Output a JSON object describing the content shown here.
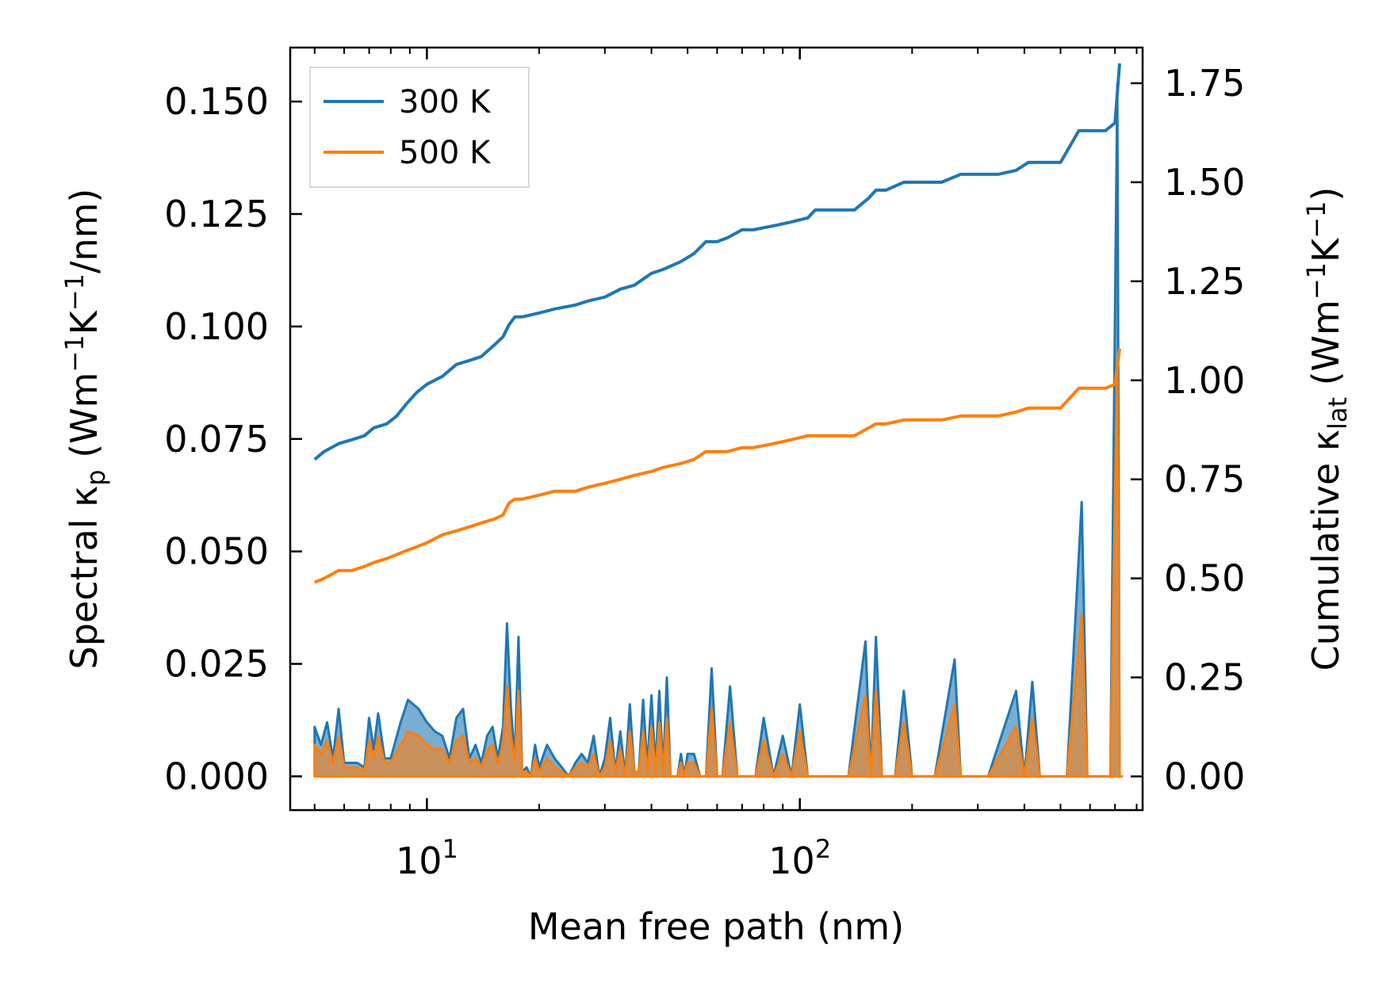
{
  "chart_data": {
    "type": "line",
    "xlabel": "Mean free path (nm)",
    "x_scale": "log",
    "xlim": [
      4.3,
      830
    ],
    "x_major_ticks": [
      {
        "value": 10,
        "base": "10",
        "exp": "1"
      },
      {
        "value": 100,
        "base": "10",
        "exp": "2"
      }
    ],
    "ylabel_left": {
      "main": "Spectral κ",
      "sub": "p",
      "unit_open": " (Wm",
      "sup1": "−1",
      "mid": "K",
      "sup2": "−1",
      "unit_close": "/nm)"
    },
    "ylabel_right": {
      "main": "Cumulative κ",
      "sub": "lat",
      "unit_open": " (Wm",
      "sup1": "−1",
      "mid": "K",
      "sup2": "−1",
      "unit_close": ")"
    },
    "ylim_left": [
      -0.0075,
      0.162
    ],
    "ylim_right": [
      -0.085,
      1.84
    ],
    "yticks_left": [
      {
        "value": 0.0,
        "label": "0.000"
      },
      {
        "value": 0.025,
        "label": "0.025"
      },
      {
        "value": 0.05,
        "label": "0.050"
      },
      {
        "value": 0.075,
        "label": "0.075"
      },
      {
        "value": 0.1,
        "label": "0.100"
      },
      {
        "value": 0.125,
        "label": "0.125"
      },
      {
        "value": 0.15,
        "label": "0.150"
      }
    ],
    "yticks_right": [
      {
        "value": 0.0,
        "label": "0.00"
      },
      {
        "value": 0.25,
        "label": "0.25"
      },
      {
        "value": 0.5,
        "label": "0.50"
      },
      {
        "value": 0.75,
        "label": "0.75"
      },
      {
        "value": 1.0,
        "label": "1.00"
      },
      {
        "value": 1.25,
        "label": "1.25"
      },
      {
        "value": 1.5,
        "label": "1.50"
      },
      {
        "value": 1.75,
        "label": "1.75"
      }
    ],
    "legend_position": "top-left",
    "series": [
      {
        "name": "300 K",
        "color": "#1f77b4",
        "cumulative": {
          "x": [
            5.0,
            5.3,
            5.8,
            6.3,
            6.8,
            7.2,
            7.8,
            8.3,
            8.8,
            9.4,
            10.0,
            11.0,
            12.0,
            13.0,
            14.0,
            15.2,
            16.0,
            16.6,
            17.2,
            18.0,
            20.0,
            22.0,
            25.0,
            27.0,
            30.0,
            33.0,
            36.0,
            40.0,
            43.0,
            48.0,
            52.0,
            56.0,
            60.0,
            64.0,
            70.0,
            75.0,
            85.0,
            95.0,
            105.0,
            110.0,
            125.0,
            140.0,
            153.0,
            160.0,
            170.0,
            190.0,
            210.0,
            240.0,
            270.0,
            300.0,
            340.0,
            380.0,
            410.0,
            440.0,
            500.0,
            560.0,
            600.0,
            660.0,
            700.0,
            720.0
          ],
          "y": [
            0.8,
            0.82,
            0.84,
            0.85,
            0.86,
            0.88,
            0.89,
            0.91,
            0.94,
            0.97,
            0.99,
            1.01,
            1.04,
            1.05,
            1.06,
            1.09,
            1.11,
            1.14,
            1.16,
            1.16,
            1.17,
            1.18,
            1.19,
            1.2,
            1.21,
            1.23,
            1.24,
            1.27,
            1.28,
            1.3,
            1.32,
            1.35,
            1.35,
            1.36,
            1.38,
            1.38,
            1.39,
            1.4,
            1.41,
            1.43,
            1.43,
            1.43,
            1.46,
            1.48,
            1.48,
            1.5,
            1.5,
            1.5,
            1.52,
            1.52,
            1.52,
            1.53,
            1.55,
            1.55,
            1.55,
            1.63,
            1.63,
            1.63,
            1.65,
            1.8
          ]
        }
      },
      {
        "name": "500 K",
        "color": "#ff7f0e",
        "cumulative": {
          "x": [
            5.0,
            5.3,
            5.8,
            6.3,
            6.8,
            7.2,
            7.8,
            8.3,
            8.8,
            9.4,
            10.0,
            11.0,
            12.0,
            13.0,
            14.0,
            15.2,
            16.0,
            16.6,
            17.2,
            18.0,
            20.0,
            22.0,
            25.0,
            27.0,
            30.0,
            33.0,
            36.0,
            40.0,
            43.0,
            48.0,
            52.0,
            56.0,
            60.0,
            64.0,
            70.0,
            75.0,
            85.0,
            95.0,
            105.0,
            110.0,
            125.0,
            140.0,
            153.0,
            160.0,
            170.0,
            190.0,
            210.0,
            240.0,
            270.0,
            300.0,
            340.0,
            380.0,
            410.0,
            440.0,
            500.0,
            560.0,
            600.0,
            660.0,
            700.0,
            720.0
          ],
          "y": [
            0.49,
            0.5,
            0.52,
            0.52,
            0.53,
            0.54,
            0.55,
            0.56,
            0.57,
            0.58,
            0.59,
            0.61,
            0.62,
            0.63,
            0.64,
            0.65,
            0.66,
            0.69,
            0.7,
            0.7,
            0.71,
            0.72,
            0.72,
            0.73,
            0.74,
            0.75,
            0.76,
            0.77,
            0.78,
            0.79,
            0.8,
            0.82,
            0.82,
            0.82,
            0.83,
            0.83,
            0.84,
            0.85,
            0.86,
            0.86,
            0.86,
            0.86,
            0.88,
            0.89,
            0.89,
            0.9,
            0.9,
            0.9,
            0.91,
            0.91,
            0.91,
            0.92,
            0.93,
            0.93,
            0.93,
            0.98,
            0.98,
            0.98,
            0.99,
            1.08
          ]
        }
      }
    ],
    "spectral": {
      "x": [
        5.0,
        5.2,
        5.4,
        5.6,
        5.8,
        6.0,
        6.2,
        6.5,
        6.8,
        7.0,
        7.2,
        7.4,
        7.7,
        8.0,
        8.5,
        8.9,
        9.5,
        10.0,
        10.5,
        11.0,
        11.5,
        12.0,
        12.5,
        13.0,
        13.5,
        14.0,
        14.5,
        15.0,
        15.5,
        16.0,
        16.4,
        16.8,
        17.2,
        17.6,
        18.0,
        18.5,
        19.0,
        19.5,
        20.0,
        21.0,
        22.0,
        23.0,
        24.0,
        25.0,
        26.0,
        27.0,
        28.0,
        29.0,
        30.0,
        31.0,
        32.0,
        33.0,
        34.0,
        35.0,
        36.0,
        37.0,
        38.0,
        39.0,
        40.0,
        41.0,
        42.0,
        43.0,
        44.0,
        45.0,
        46.0,
        47.0,
        48.0,
        49.0,
        50.0,
        52.0,
        54.0,
        56.0,
        58.0,
        60.0,
        62.0,
        65.0,
        68.0,
        72.0,
        76.0,
        80.0,
        85.0,
        90.0,
        95.0,
        100.0,
        105.0,
        112.0,
        120.0,
        135.0,
        150.0,
        155.0,
        160.0,
        166.0,
        172.0,
        180.0,
        190.0,
        200.0,
        230.0,
        260.0,
        270.0,
        280.0,
        320.0,
        380.0,
        400.0,
        420.0,
        440.0,
        460.0,
        520.0,
        570.0,
        590.0,
        610.0,
        680.0,
        710.0,
        720.0,
        730.0
      ],
      "y300": [
        0.011,
        0.007,
        0.012,
        0.004,
        0.015,
        0.003,
        0.003,
        0.003,
        0.002,
        0.013,
        0.006,
        0.014,
        0.004,
        0.004,
        0.012,
        0.017,
        0.015,
        0.012,
        0.01,
        0.009,
        0.004,
        0.013,
        0.015,
        0.004,
        0.007,
        0.003,
        0.009,
        0.011,
        0.004,
        0.011,
        0.034,
        0.015,
        0.004,
        0.031,
        0.001,
        0.002,
        0.0,
        0.007,
        0.002,
        0.007,
        0.004,
        0.002,
        0.0,
        0.003,
        0.005,
        0.003,
        0.009,
        0.0,
        0.004,
        0.013,
        0.001,
        0.01,
        0.0,
        0.016,
        0.001,
        0.001,
        0.017,
        0.002,
        0.018,
        0.002,
        0.019,
        0.001,
        0.022,
        0.0,
        0.0,
        0.0,
        0.005,
        0.0,
        0.005,
        0.005,
        0.0,
        0.0,
        0.024,
        0.0,
        0.0,
        0.02,
        0.0,
        0.0,
        0.0,
        0.013,
        0.0,
        0.009,
        0.0,
        0.016,
        0.0,
        0.0,
        0.0,
        0.0,
        0.03,
        0.0,
        0.031,
        0.0,
        0.0,
        0.0,
        0.019,
        0.0,
        0.0,
        0.026,
        0.0,
        0.0,
        0.0,
        0.019,
        0.0,
        0.021,
        0.0,
        0.0,
        0.0,
        0.061,
        0.0,
        0.0,
        0.0,
        0.154,
        0.0,
        0.0
      ],
      "y500": [
        0.007,
        0.005,
        0.008,
        0.003,
        0.009,
        0.002,
        0.002,
        0.002,
        0.001,
        0.008,
        0.004,
        0.009,
        0.003,
        0.003,
        0.007,
        0.01,
        0.009,
        0.007,
        0.006,
        0.006,
        0.003,
        0.008,
        0.009,
        0.003,
        0.004,
        0.002,
        0.006,
        0.007,
        0.003,
        0.007,
        0.02,
        0.009,
        0.003,
        0.019,
        0.001,
        0.001,
        0.0,
        0.004,
        0.001,
        0.004,
        0.002,
        0.001,
        0.0,
        0.002,
        0.003,
        0.002,
        0.005,
        0.0,
        0.002,
        0.008,
        0.001,
        0.006,
        0.0,
        0.01,
        0.001,
        0.001,
        0.01,
        0.001,
        0.011,
        0.001,
        0.012,
        0.001,
        0.013,
        0.0,
        0.0,
        0.0,
        0.003,
        0.0,
        0.003,
        0.003,
        0.0,
        0.0,
        0.015,
        0.0,
        0.0,
        0.012,
        0.0,
        0.0,
        0.0,
        0.008,
        0.0,
        0.005,
        0.0,
        0.01,
        0.0,
        0.0,
        0.0,
        0.0,
        0.018,
        0.0,
        0.019,
        0.0,
        0.0,
        0.0,
        0.012,
        0.0,
        0.0,
        0.016,
        0.0,
        0.0,
        0.0,
        0.011,
        0.0,
        0.013,
        0.0,
        0.0,
        0.0,
        0.036,
        0.0,
        0.0,
        0.0,
        0.092,
        0.0,
        0.0
      ]
    }
  }
}
